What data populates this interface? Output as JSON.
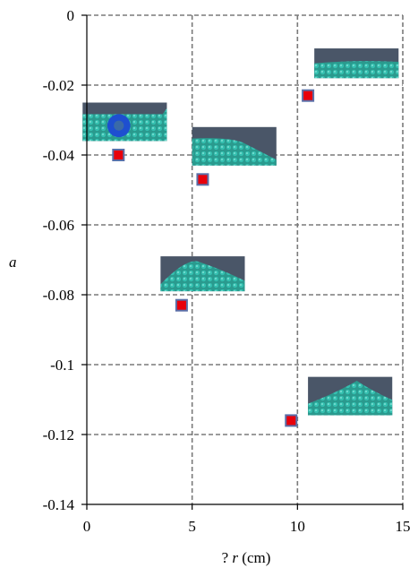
{
  "chart_data": {
    "type": "scatter",
    "title": "",
    "xlabel_prefix": "? ",
    "xlabel_var": "r",
    "xlabel_unit": " (cm)",
    "ylabel": "a",
    "xlim": [
      0,
      15
    ],
    "ylim": [
      -0.14,
      0
    ],
    "xticks": [
      0,
      5,
      10,
      15
    ],
    "xtick_labels": [
      "0",
      "5",
      "10",
      "15"
    ],
    "yticks": [
      0,
      -0.02,
      -0.04,
      -0.06,
      -0.08,
      -0.1,
      -0.12,
      -0.14
    ],
    "ytick_labels": [
      "0",
      "-0.02",
      "-0.04",
      "-0.06",
      "-0.08",
      "-0.1",
      "-0.12",
      "-0.14"
    ],
    "grid": true,
    "marker_color": "#e8000b",
    "marker_edge": "#5a6fa8",
    "points": [
      {
        "x": 1.5,
        "y": -0.04
      },
      {
        "x": 4.5,
        "y": -0.083
      },
      {
        "x": 5.5,
        "y": -0.047
      },
      {
        "x": 9.7,
        "y": -0.116
      },
      {
        "x": 10.5,
        "y": -0.023
      }
    ],
    "insets": [
      {
        "x_left": -0.2,
        "x_right": 3.8,
        "y_top": -0.025,
        "y_bottom": -0.036,
        "shape": "flat-with-ball"
      },
      {
        "x_left": 3.5,
        "x_right": 7.5,
        "y_top": -0.069,
        "y_bottom": -0.079,
        "shape": "mound"
      },
      {
        "x_left": 5.0,
        "x_right": 9.0,
        "y_top": -0.032,
        "y_bottom": -0.043,
        "shape": "ramp"
      },
      {
        "x_left": 10.5,
        "x_right": 14.5,
        "y_top": -0.1035,
        "y_bottom": -0.1145,
        "shape": "peak"
      },
      {
        "x_left": 10.8,
        "x_right": 14.8,
        "y_top": -0.0095,
        "y_bottom": -0.018,
        "shape": "flat"
      }
    ]
  }
}
